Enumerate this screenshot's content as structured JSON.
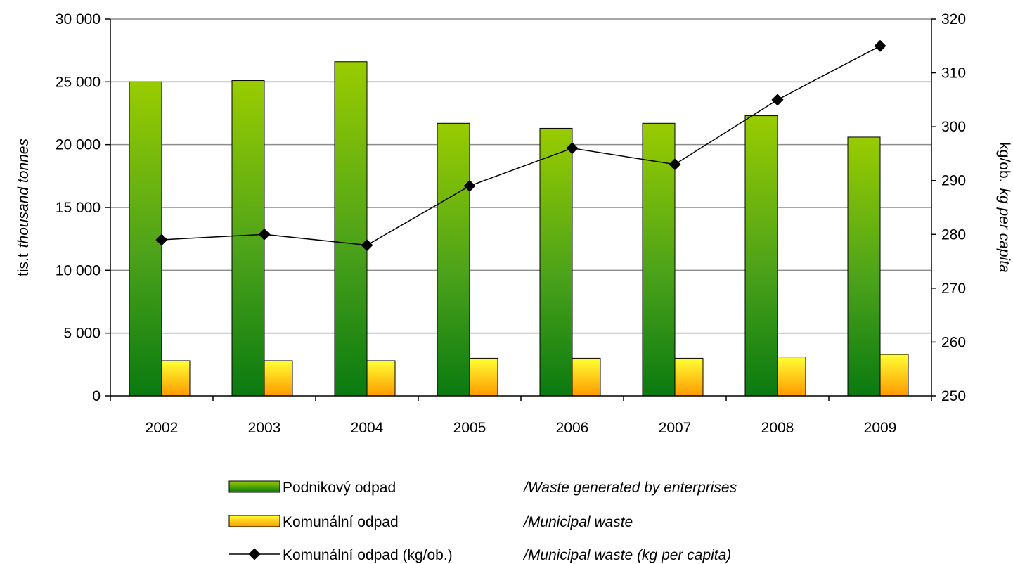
{
  "chart_data": {
    "type": "bar",
    "categories": [
      "2002",
      "2003",
      "2004",
      "2005",
      "2006",
      "2007",
      "2008",
      "2009"
    ],
    "series": [
      {
        "name": "Podnikový odpad",
        "name_en": "/Waste generated by enterprises",
        "axis": "left",
        "kind": "bar",
        "color": "#3a9a10",
        "values": [
          25000,
          25100,
          26600,
          21700,
          21300,
          21700,
          22300,
          20600
        ]
      },
      {
        "name": "Komunální odpad",
        "name_en": "/Municipal waste",
        "axis": "left",
        "kind": "bar",
        "color": "#ffc000",
        "values": [
          2800,
          2800,
          2800,
          3000,
          3000,
          3000,
          3100,
          3300
        ]
      },
      {
        "name": "Komunální odpad (kg/ob.)",
        "name_en": "/Municipal waste (kg per capita)",
        "axis": "right",
        "kind": "line",
        "color": "#000000",
        "values": [
          279,
          280,
          278,
          289,
          296,
          293,
          305,
          315
        ]
      }
    ],
    "y_left": {
      "label_cz": "tis.t",
      "label_en": "thousand tonnes",
      "min": 0,
      "max": 30000,
      "step": 5000,
      "tick_labels": [
        "0",
        "5 000",
        "10 000",
        "15 000",
        "20 000",
        "25 000",
        "30 000"
      ]
    },
    "y_right": {
      "label_cz": "kg/ob.",
      "label_en": "kg per capita",
      "min": 250,
      "max": 320,
      "step": 10,
      "tick_labels": [
        "250",
        "260",
        "270",
        "280",
        "290",
        "300",
        "310",
        "320"
      ]
    },
    "grid": true,
    "legend_position": "bottom-center"
  }
}
